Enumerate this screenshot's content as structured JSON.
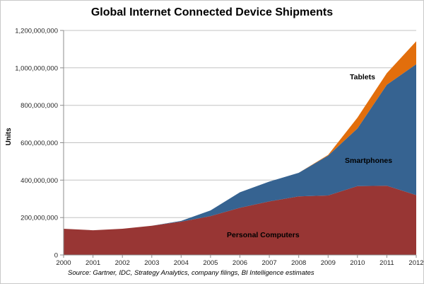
{
  "source_note": "Source: Gartner, IDC, Strategy Analytics, company filings, BI Intelligence estimates",
  "colors": {
    "personal_computers": "#983634",
    "smartphones": "#366391",
    "tablets": "#E26E0C",
    "gridline": "#c3c3c3",
    "axis": "#8c8c8c",
    "tick_text": "#262626"
  },
  "chart_data": {
    "type": "area",
    "stacked": true,
    "title": "Global Internet Connected Device Shipments",
    "ylabel": "Units",
    "xlabel": "",
    "grid": "horizontal",
    "legend": "inline-series-labels",
    "x": [
      2000,
      2001,
      2002,
      2003,
      2004,
      2005,
      2006,
      2007,
      2008,
      2009,
      2010,
      2011,
      2012
    ],
    "x_tick_labels": [
      "2000",
      "2001",
      "2002",
      "2003",
      "2004",
      "2005",
      "2006",
      "2007",
      "2008",
      "2009",
      "2010",
      "2011",
      "2012"
    ],
    "ylim": [
      0,
      1200000000
    ],
    "y_tick_interval": 200000000,
    "y_tick_labels": [
      "0",
      "200,000,000",
      "400,000,000",
      "600,000,000",
      "800,000,000",
      "1,000,000,000",
      "1,200,000,000"
    ],
    "series": [
      {
        "id": "personal-computers",
        "name": "Personal Computers",
        "color": "#983634",
        "values": [
          140000000,
          132000000,
          140000000,
          156000000,
          178000000,
          208000000,
          252000000,
          286000000,
          313000000,
          318000000,
          368000000,
          370000000,
          320000000
        ]
      },
      {
        "id": "smartphones",
        "name": "Smartphones",
        "color": "#366391",
        "values": [
          0,
          0,
          0,
          0,
          4000000,
          30000000,
          83000000,
          106000000,
          126000000,
          213000000,
          308000000,
          540000000,
          700000000
        ]
      },
      {
        "id": "tablets",
        "name": "Tablets",
        "color": "#E26E0C",
        "values": [
          0,
          0,
          0,
          0,
          0,
          0,
          0,
          0,
          0,
          4000000,
          58000000,
          62000000,
          122000000
        ]
      }
    ]
  }
}
